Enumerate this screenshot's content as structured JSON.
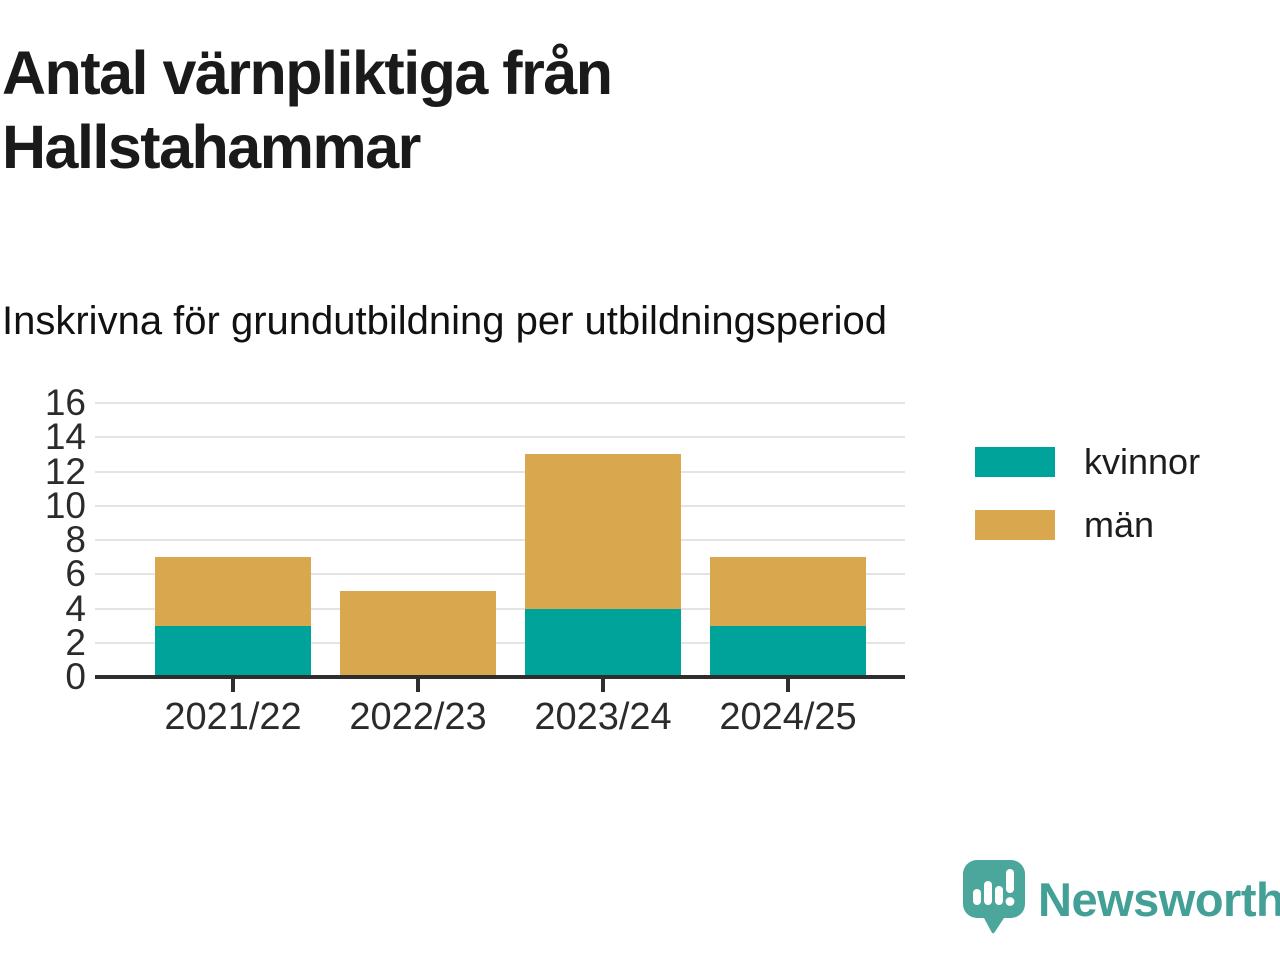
{
  "chart_data": {
    "type": "bar",
    "stacked": true,
    "title": "Antal värnpliktiga från Hallstahammar",
    "subtitle": "Inskrivna för grundutbildning per utbildningsperiod",
    "categories": [
      "2021/22",
      "2022/23",
      "2023/24",
      "2024/25"
    ],
    "series": [
      {
        "name": "kvinnor",
        "color": "#00a39a",
        "values": [
          3,
          0,
          4,
          3
        ]
      },
      {
        "name": "män",
        "color": "#d9a84e",
        "values": [
          4,
          5,
          9,
          4
        ]
      }
    ],
    "xlabel": "",
    "ylabel": "",
    "ylim": [
      0,
      16
    ],
    "yticks": [
      0,
      2,
      4,
      6,
      8,
      10,
      12,
      14,
      16
    ],
    "grid": true,
    "legend_position": "right",
    "axis_color": "#2e2e2e",
    "grid_color": "#e4e4e4"
  },
  "brand": {
    "name": "Newsworthy",
    "color": "#43a096",
    "icon_color": "#4ba79c"
  }
}
